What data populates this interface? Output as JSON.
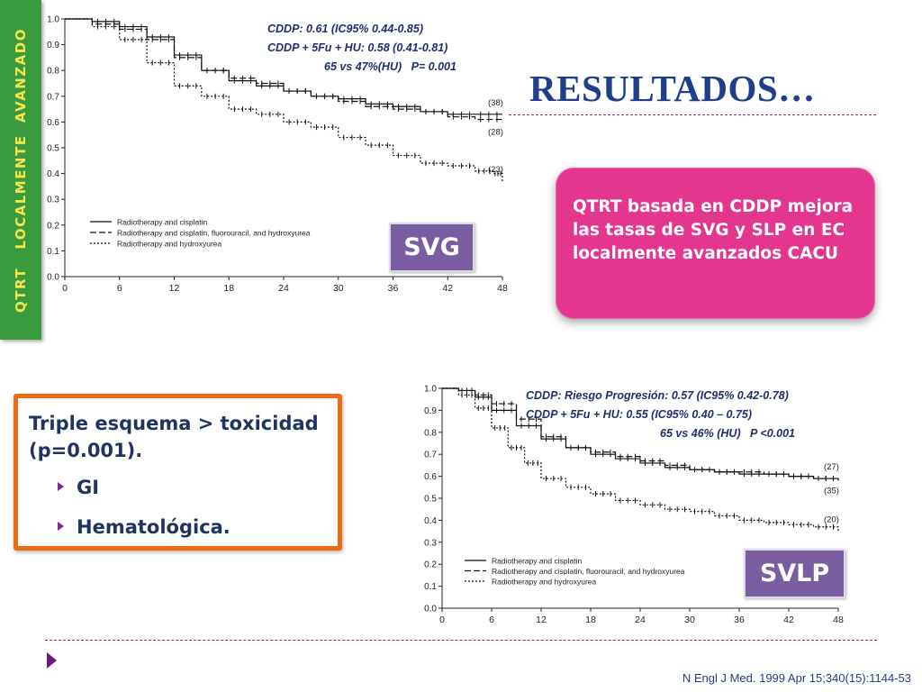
{
  "side_banner": {
    "text": "QTRT   LOCALMENTE  AVANZADO"
  },
  "title": "RESULTADOS…",
  "pink_box": {
    "text": "QTRT  basada en CDDP mejora las tasas de SVG y SLP  en  EC localmente avanzados CACU"
  },
  "toxicity_box": {
    "heading": "Triple esquema > toxicidad (p=0.001).",
    "items": [
      "GI",
      "Hematológica."
    ]
  },
  "badges": {
    "svg": "SVG",
    "svlp": "SVLP"
  },
  "annotations": {
    "top": [
      "CDDP: 0.61 (IC95% 0.44-0.85)",
      "CDDP + 5Fu + HU: 0.58 (0.41-0.81)",
      "65 vs 47%(HU)   P= 0.001"
    ],
    "bottom": [
      "CDDP: Riesgo Progresión: 0.57 (IC95% 0.42-0.78)",
      "CDDP + 5Fu + HU: 0.55 (IC95% 0.40 – 0.75)",
      "65 vs 46% (HU)   P <0.001"
    ]
  },
  "citation": "N Engl J Med. 1999 Apr 15;340(15):1144-53",
  "colors": {
    "banner": "#3a9a3e",
    "banner_text": "#f5e64a",
    "title": "#1f3f8a",
    "pink_box": "#e5368f",
    "tox_border": "#ef6a14",
    "badge": "#7a5ca0"
  },
  "chart_data": [
    {
      "type": "line",
      "xlim": [
        0,
        48
      ],
      "ylim": [
        0,
        1.0
      ],
      "x_ticks": [
        0,
        6,
        12,
        18,
        24,
        30,
        36,
        42,
        48
      ],
      "y_ticks": [
        "0.0",
        "0.1",
        "0.2",
        "0.3",
        "0.4",
        "0.5",
        "0.6",
        "0.7",
        "0.8",
        "0.9",
        "1.0"
      ],
      "legend_position": "bottom-left",
      "series": [
        {
          "name": "Radiotherapy and cisplatin",
          "style": "solid",
          "end_label": "(38)",
          "x": [
            0,
            3,
            6,
            9,
            12,
            15,
            18,
            21,
            24,
            27,
            30,
            33,
            36,
            39,
            42,
            45,
            48
          ],
          "y": [
            1.0,
            0.99,
            0.97,
            0.93,
            0.86,
            0.8,
            0.76,
            0.74,
            0.72,
            0.7,
            0.69,
            0.67,
            0.66,
            0.64,
            0.63,
            0.63,
            0.63
          ]
        },
        {
          "name": "Radiotherapy and cisplatin, fluorouracil, and hydroxyurea",
          "style": "dashed",
          "end_label": "(28)",
          "x": [
            0,
            3,
            6,
            9,
            12,
            15,
            18,
            21,
            24,
            27,
            30,
            33,
            36,
            39,
            42,
            45,
            48
          ],
          "y": [
            1.0,
            0.98,
            0.96,
            0.92,
            0.85,
            0.8,
            0.77,
            0.75,
            0.72,
            0.7,
            0.68,
            0.66,
            0.65,
            0.64,
            0.62,
            0.61,
            0.6
          ]
        },
        {
          "name": "Radiotherapy and hydroxyurea",
          "style": "dotted",
          "end_label": "(23)",
          "x": [
            0,
            3,
            6,
            9,
            12,
            15,
            18,
            21,
            24,
            27,
            30,
            33,
            36,
            39,
            42,
            45,
            47,
            48
          ],
          "y": [
            1.0,
            0.97,
            0.92,
            0.83,
            0.74,
            0.7,
            0.65,
            0.63,
            0.6,
            0.58,
            0.54,
            0.51,
            0.47,
            0.44,
            0.43,
            0.41,
            0.4,
            0.37
          ]
        }
      ]
    },
    {
      "type": "line",
      "xlim": [
        0,
        48
      ],
      "ylim": [
        0,
        1.0
      ],
      "x_ticks": [
        0,
        6,
        12,
        18,
        24,
        30,
        36,
        42,
        48
      ],
      "y_ticks": [
        "0.0",
        "0.1",
        "0.2",
        "0.3",
        "0.4",
        "0.5",
        "0.6",
        "0.7",
        "0.8",
        "0.9",
        "1.0"
      ],
      "legend_position": "bottom-left",
      "series": [
        {
          "name": "Radiotherapy and cisplatin",
          "style": "solid",
          "end_label": "(27)",
          "x": [
            0,
            2,
            4,
            6,
            9,
            12,
            15,
            18,
            21,
            24,
            27,
            30,
            33,
            36,
            39,
            42,
            45,
            48
          ],
          "y": [
            1.0,
            0.99,
            0.96,
            0.9,
            0.83,
            0.77,
            0.73,
            0.7,
            0.68,
            0.66,
            0.64,
            0.63,
            0.62,
            0.61,
            0.61,
            0.6,
            0.59,
            0.59
          ]
        },
        {
          "name": "Radiotherapy and cisplatin, fluorouracil, and hydroxyurea",
          "style": "dashed",
          "end_label": "(35)",
          "x": [
            0,
            2,
            4,
            6,
            9,
            12,
            15,
            18,
            21,
            24,
            27,
            30,
            33,
            36,
            39,
            42,
            45,
            48
          ],
          "y": [
            1.0,
            0.99,
            0.97,
            0.93,
            0.86,
            0.78,
            0.73,
            0.71,
            0.69,
            0.67,
            0.65,
            0.63,
            0.62,
            0.62,
            0.61,
            0.6,
            0.59,
            0.58
          ]
        },
        {
          "name": "Radiotherapy and hydroxyurea",
          "style": "dotted",
          "end_label": "(20)",
          "x": [
            0,
            2,
            4,
            6,
            8,
            10,
            12,
            15,
            18,
            21,
            24,
            27,
            30,
            33,
            36,
            39,
            42,
            45,
            48
          ],
          "y": [
            1.0,
            0.97,
            0.91,
            0.82,
            0.73,
            0.66,
            0.59,
            0.55,
            0.52,
            0.49,
            0.47,
            0.45,
            0.44,
            0.42,
            0.4,
            0.39,
            0.38,
            0.37,
            0.35
          ]
        }
      ]
    }
  ]
}
